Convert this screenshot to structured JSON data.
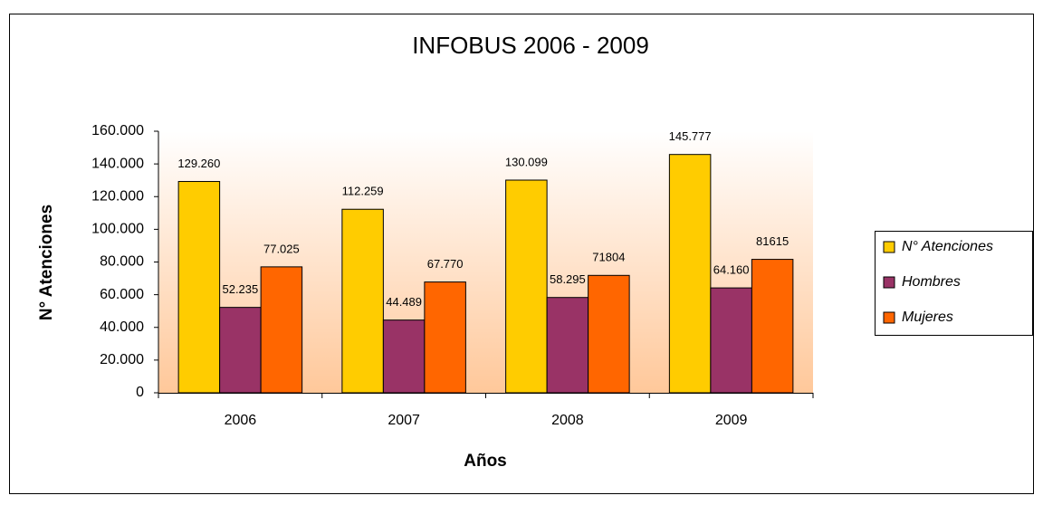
{
  "chart_data": {
    "type": "bar",
    "title": "INFOBUS 2006 - 2009",
    "x_label": "Años",
    "y_label": "N° Atenciones",
    "categories": [
      "2006",
      "2007",
      "2008",
      "2009"
    ],
    "series": [
      {
        "name": "N° Atenciones",
        "color": "#ffcc00",
        "values": [
          129260,
          112259,
          130099,
          145777
        ],
        "value_labels": [
          "129.260",
          "112.259",
          "130.099",
          "145.777"
        ]
      },
      {
        "name": "Hombres",
        "color": "#993366",
        "values": [
          52235,
          44489,
          58295,
          64160
        ],
        "value_labels": [
          "52.235",
          "44.489",
          "58.295",
          "64.160"
        ]
      },
      {
        "name": "Mujeres",
        "color": "#ff6600",
        "values": [
          77025,
          67770,
          71804,
          81615
        ],
        "value_labels": [
          "77.025",
          "67.770",
          "71804",
          "81615"
        ]
      }
    ],
    "ylim": [
      0,
      160000
    ],
    "yticks": [
      0,
      {
        "value": 20000,
        "label": "20.000"
      },
      {
        "value": 40000,
        "label": "40.000"
      },
      {
        "value": 60000,
        "label": "60.000"
      },
      {
        "value": 80000,
        "label": "80.000"
      },
      {
        "value": 100000,
        "label": "100.000"
      },
      {
        "value": 120000,
        "label": "120.000"
      },
      {
        "value": 140000,
        "label": "140.000"
      },
      {
        "value": 160000,
        "label": "160.000"
      }
    ],
    "legend": "right",
    "grid": false
  }
}
